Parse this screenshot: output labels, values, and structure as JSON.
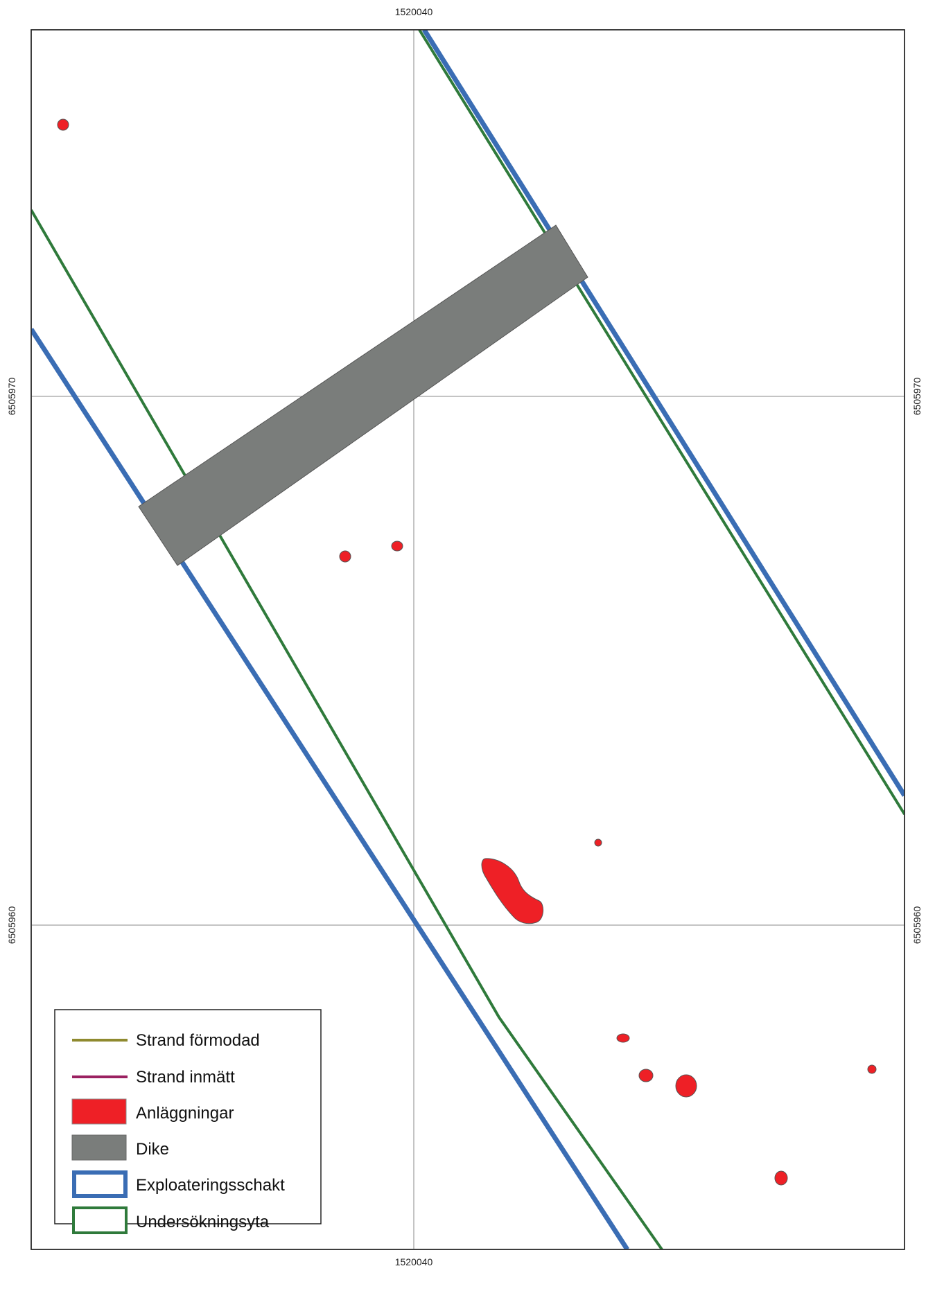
{
  "map": {
    "coordinates": {
      "easting_top": "1520040",
      "easting_bottom": "1520040",
      "northing_upper_left": "6505970",
      "northing_upper_right": "6505970",
      "northing_lower_left": "6505960",
      "northing_lower_right": "6505960"
    },
    "colors": {
      "frame": "#222222",
      "grid": "#8a8a8a",
      "exploatering": "#3a6db4",
      "undersokning": "#2f7a3b",
      "dike": "#7a7d7b",
      "anlaggning": "#ee2026",
      "strand_formodad": "#8f8a2f",
      "strand_inmatt": "#9b2161"
    }
  },
  "legend": {
    "items": [
      {
        "label": "Strand förmodad",
        "symbol": "line",
        "color": "#8f8a2f"
      },
      {
        "label": "Strand inmätt",
        "symbol": "line",
        "color": "#9b2161"
      },
      {
        "label": "Anläggningar",
        "symbol": "fill",
        "color": "#ee2026"
      },
      {
        "label": "Dike",
        "symbol": "fill",
        "color": "#7a7d7b"
      },
      {
        "label": "Exploateringsschakt",
        "symbol": "outline",
        "color": "#3a6db4"
      },
      {
        "label": "Undersökningsyta",
        "symbol": "outline",
        "color": "#2f7a3b"
      }
    ]
  }
}
